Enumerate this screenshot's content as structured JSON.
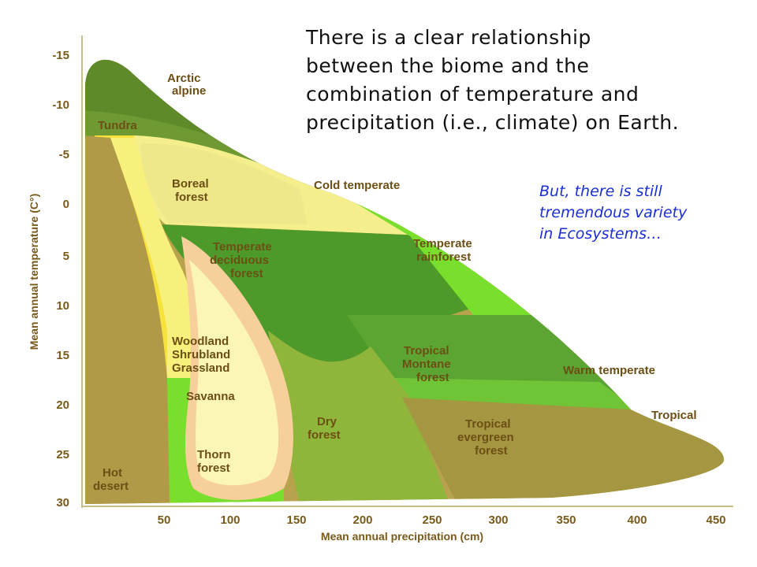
{
  "slide": {
    "main_text_lines": [
      "There is a clear relationship",
      "between the biome and the",
      "combination of temperature and",
      "precipitation (i.e., climate) on Earth."
    ],
    "note_lines": [
      "But, there is still",
      "tremendous variety",
      "in Ecosystems…"
    ]
  },
  "diagram": {
    "y_axis_title": "Mean annual temperature (C°)",
    "x_axis_title": "Mean annual precipitation (cm)",
    "y_ticks": [
      "-15",
      "-10",
      "-5",
      "0",
      "5",
      "10",
      "15",
      "20",
      "25",
      "30"
    ],
    "x_ticks": [
      "50",
      "100",
      "150",
      "200",
      "250",
      "300",
      "350",
      "400",
      "450"
    ],
    "biome_labels": {
      "arctic": [
        "Arctic",
        "alpine"
      ],
      "tundra": [
        "Tundra"
      ],
      "boreal": [
        "Boreal",
        "forest"
      ],
      "cold_temperate": [
        "Cold temperate"
      ],
      "temperate_deciduous": [
        "Temperate",
        "deciduous",
        "forest"
      ],
      "temperate_rainforest": [
        "Temperate",
        "rainforest"
      ],
      "woodland": [
        "Woodland",
        "Shrubland",
        "Grassland"
      ],
      "tropical_montane": [
        "Tropical",
        "Montane",
        "forest"
      ],
      "warm_temperate": [
        "Warm temperate"
      ],
      "savanna": [
        "Savanna"
      ],
      "dry_forest": [
        "Dry",
        "forest"
      ],
      "tropical_evergreen": [
        "Tropical",
        "evergreen",
        "forest"
      ],
      "tropical": [
        "Tropical"
      ],
      "thorn_forest": [
        "Thorn",
        "forest"
      ],
      "hot_desert": [
        "Hot",
        "desert"
      ]
    },
    "colors": {
      "dark_olive": "#5f8a2a",
      "olive_tan": "#b8a24e",
      "light_yellow": "#f4ee8c",
      "pale_yellow": "#fbf6b5",
      "bright_green": "#79de2c",
      "mid_green": "#4d9a2a",
      "peach": "#f6cf9a",
      "yellow": "#f6e23c",
      "axis_text": "#7a5a1a"
    }
  }
}
